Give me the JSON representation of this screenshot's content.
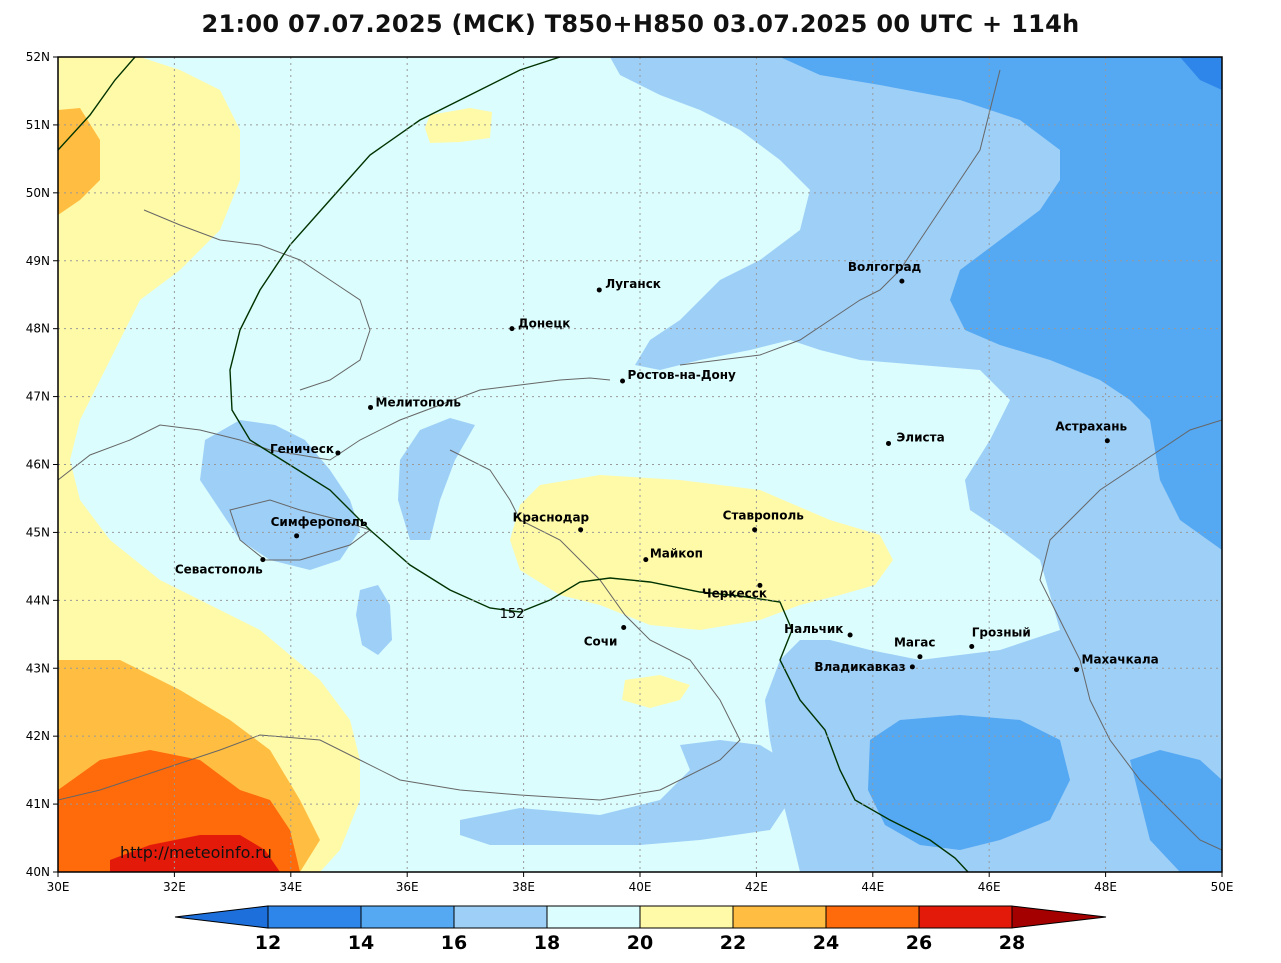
{
  "title": "21:00 07.07.2025 (МСК) T850+H850 03.07.2025 00 UTC + 114h",
  "watermark": "http://meteoinfo.ru",
  "contour_label": "152",
  "axes": {
    "lon_ticks": [
      "30E",
      "32E",
      "34E",
      "36E",
      "38E",
      "40E",
      "42E",
      "44E",
      "46E",
      "48E",
      "50E"
    ],
    "lat_ticks": [
      "52N",
      "51N",
      "50N",
      "49N",
      "48N",
      "47N",
      "46N",
      "45N",
      "44N",
      "43N",
      "42N",
      "41N",
      "40N"
    ],
    "lon_range": [
      30,
      50
    ],
    "lat_range": [
      40,
      52
    ]
  },
  "colorbar": {
    "labels": [
      "12",
      "14",
      "16",
      "18",
      "20",
      "22",
      "24",
      "26",
      "28"
    ],
    "colors": [
      "#1d6fdc",
      "#2f86ea",
      "#55a8f2",
      "#9dcff7",
      "#dcfdfd",
      "#fffaa8",
      "#ffbe41",
      "#ff6a0a",
      "#e31a0a",
      "#a50000"
    ]
  },
  "cities": [
    {
      "name": "Волгоград",
      "lon": 44.5,
      "lat": 48.7
    },
    {
      "name": "Луганск",
      "lon": 39.3,
      "lat": 48.57
    },
    {
      "name": "Донецк",
      "lon": 37.8,
      "lat": 48.0
    },
    {
      "name": "Ростов-на-Дону",
      "lon": 39.7,
      "lat": 47.23
    },
    {
      "name": "Мелитополь",
      "lon": 35.37,
      "lat": 46.84
    },
    {
      "name": "Элиста",
      "lon": 44.27,
      "lat": 46.31
    },
    {
      "name": "Астрахань",
      "lon": 48.03,
      "lat": 46.35
    },
    {
      "name": "Геническ",
      "lon": 34.81,
      "lat": 46.17
    },
    {
      "name": "Краснодар",
      "lon": 38.98,
      "lat": 45.04
    },
    {
      "name": "Ставрополь",
      "lon": 41.97,
      "lat": 45.04
    },
    {
      "name": "Симферополь",
      "lon": 34.1,
      "lat": 44.95
    },
    {
      "name": "Майкоп",
      "lon": 40.1,
      "lat": 44.6
    },
    {
      "name": "Севастополь",
      "lon": 33.52,
      "lat": 44.6
    },
    {
      "name": "Черкесск",
      "lon": 42.06,
      "lat": 44.22
    },
    {
      "name": "Нальчик",
      "lon": 43.61,
      "lat": 43.49
    },
    {
      "name": "Сочи",
      "lon": 39.72,
      "lat": 43.6
    },
    {
      "name": "Грозный",
      "lon": 45.7,
      "lat": 43.32
    },
    {
      "name": "Магас",
      "lon": 44.81,
      "lat": 43.17
    },
    {
      "name": "Махачкала",
      "lon": 47.5,
      "lat": 42.98
    },
    {
      "name": "Владикавказ",
      "lon": 44.68,
      "lat": 43.02
    }
  ]
}
